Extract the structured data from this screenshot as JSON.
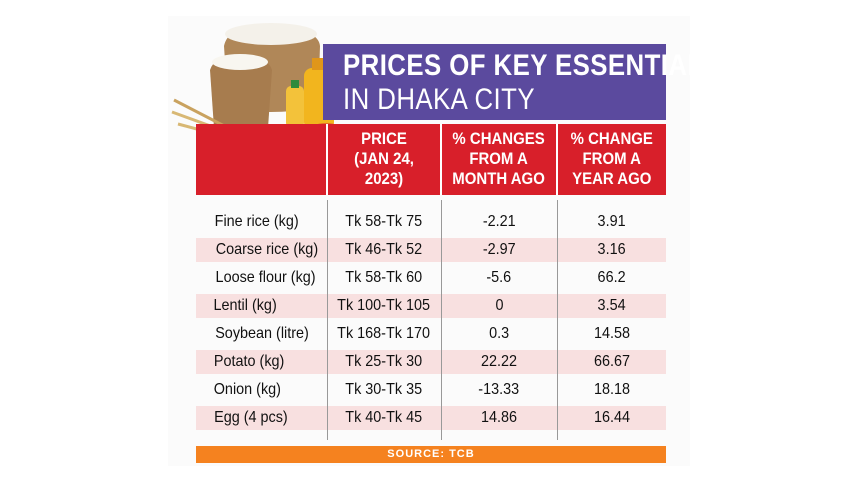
{
  "title": {
    "line1": "PRICES OF KEY ESSENTIALS",
    "line2": "IN DHAKA CITY"
  },
  "columns": [
    "PRICE\n(JAN 24,\n2023)",
    "% CHANGES\nFROM A\nMONTH AGO",
    "% CHANGE\nFROM A\nYEAR AGO"
  ],
  "rows": [
    {
      "item": "Fine rice (kg)",
      "price": "Tk 58-Tk 75",
      "month": "-2.21",
      "year": "3.91"
    },
    {
      "item": "Coarse rice (kg)",
      "price": "Tk 46-Tk 52",
      "month": "-2.97",
      "year": "3.16"
    },
    {
      "item": "Loose flour (kg)",
      "price": "Tk 58-Tk 60",
      "month": "-5.6",
      "year": "66.2"
    },
    {
      "item": "Lentil (kg)",
      "price": "Tk 100-Tk 105",
      "month": "0",
      "year": "3.54"
    },
    {
      "item": "Soybean (litre)",
      "price": "Tk 168-Tk 170",
      "month": "0.3",
      "year": "14.58"
    },
    {
      "item": "Potato (kg)",
      "price": "Tk 25-Tk 30",
      "month": "22.22",
      "year": "66.67"
    },
    {
      "item": "Onion (kg)",
      "price": "Tk 30-Tk 35",
      "month": "-13.33",
      "year": "18.18"
    },
    {
      "item": "Egg (4 pcs)",
      "price": "Tk 40-Tk 45",
      "month": "14.86",
      "year": "16.44"
    }
  ],
  "source": "SOURCE: TCB",
  "colors": {
    "title_band": "#5b4a9e",
    "header_band": "#d81f2a",
    "row_shade": "#f8e0e0",
    "source_bar": "#f5821f"
  },
  "illustration": "groceries-illustration"
}
